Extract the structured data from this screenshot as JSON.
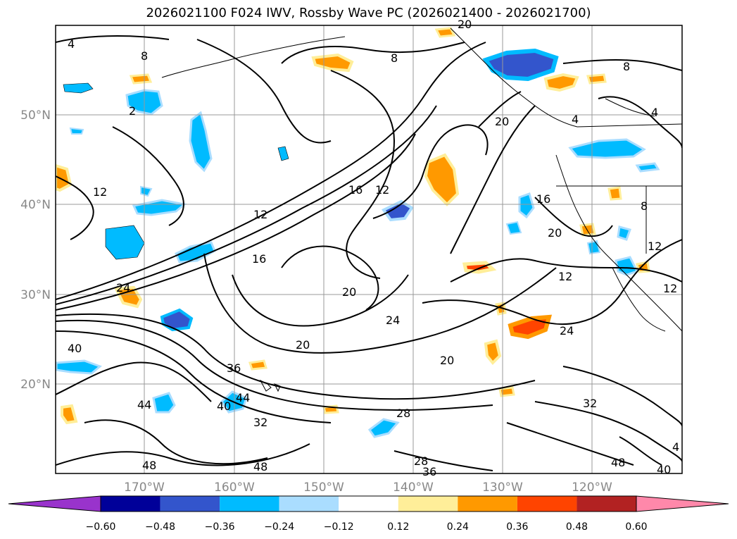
{
  "title": "2026021100 F024 IWV, Rossby Wave PC (2026021400 - 2026021700)",
  "lat_labels": [
    "50°N",
    "40°N",
    "30°N",
    "20°N"
  ],
  "lon_labels": [
    "170°W",
    "160°W",
    "150°W",
    "140°W",
    "130°W",
    "120°W"
  ],
  "contour_labels": [
    "4",
    "8",
    "8",
    "8",
    "4",
    "2",
    "4",
    "12",
    "12",
    "16",
    "12",
    "20",
    "16",
    "16",
    "20",
    "12",
    "20",
    "20",
    "24",
    "20",
    "24",
    "20",
    "24",
    "40",
    "36",
    "44",
    "40",
    "32",
    "28",
    "44",
    "48",
    "48",
    "28",
    "36",
    "48",
    "40",
    "4",
    "8",
    "12",
    "12",
    "32"
  ],
  "colorbar": {
    "ticks": [
      "−0.60",
      "−0.48",
      "−0.36",
      "−0.24",
      "−0.12",
      "0.12",
      "0.24",
      "0.36",
      "0.48",
      "0.60"
    ],
    "colors": [
      "#9933cc",
      "#000099",
      "#3355cc",
      "#00bbff",
      "#aaddff",
      "#ffffff",
      "#ffee99",
      "#ff9900",
      "#ff4400",
      "#b22222",
      "#ff88aa"
    ]
  }
}
